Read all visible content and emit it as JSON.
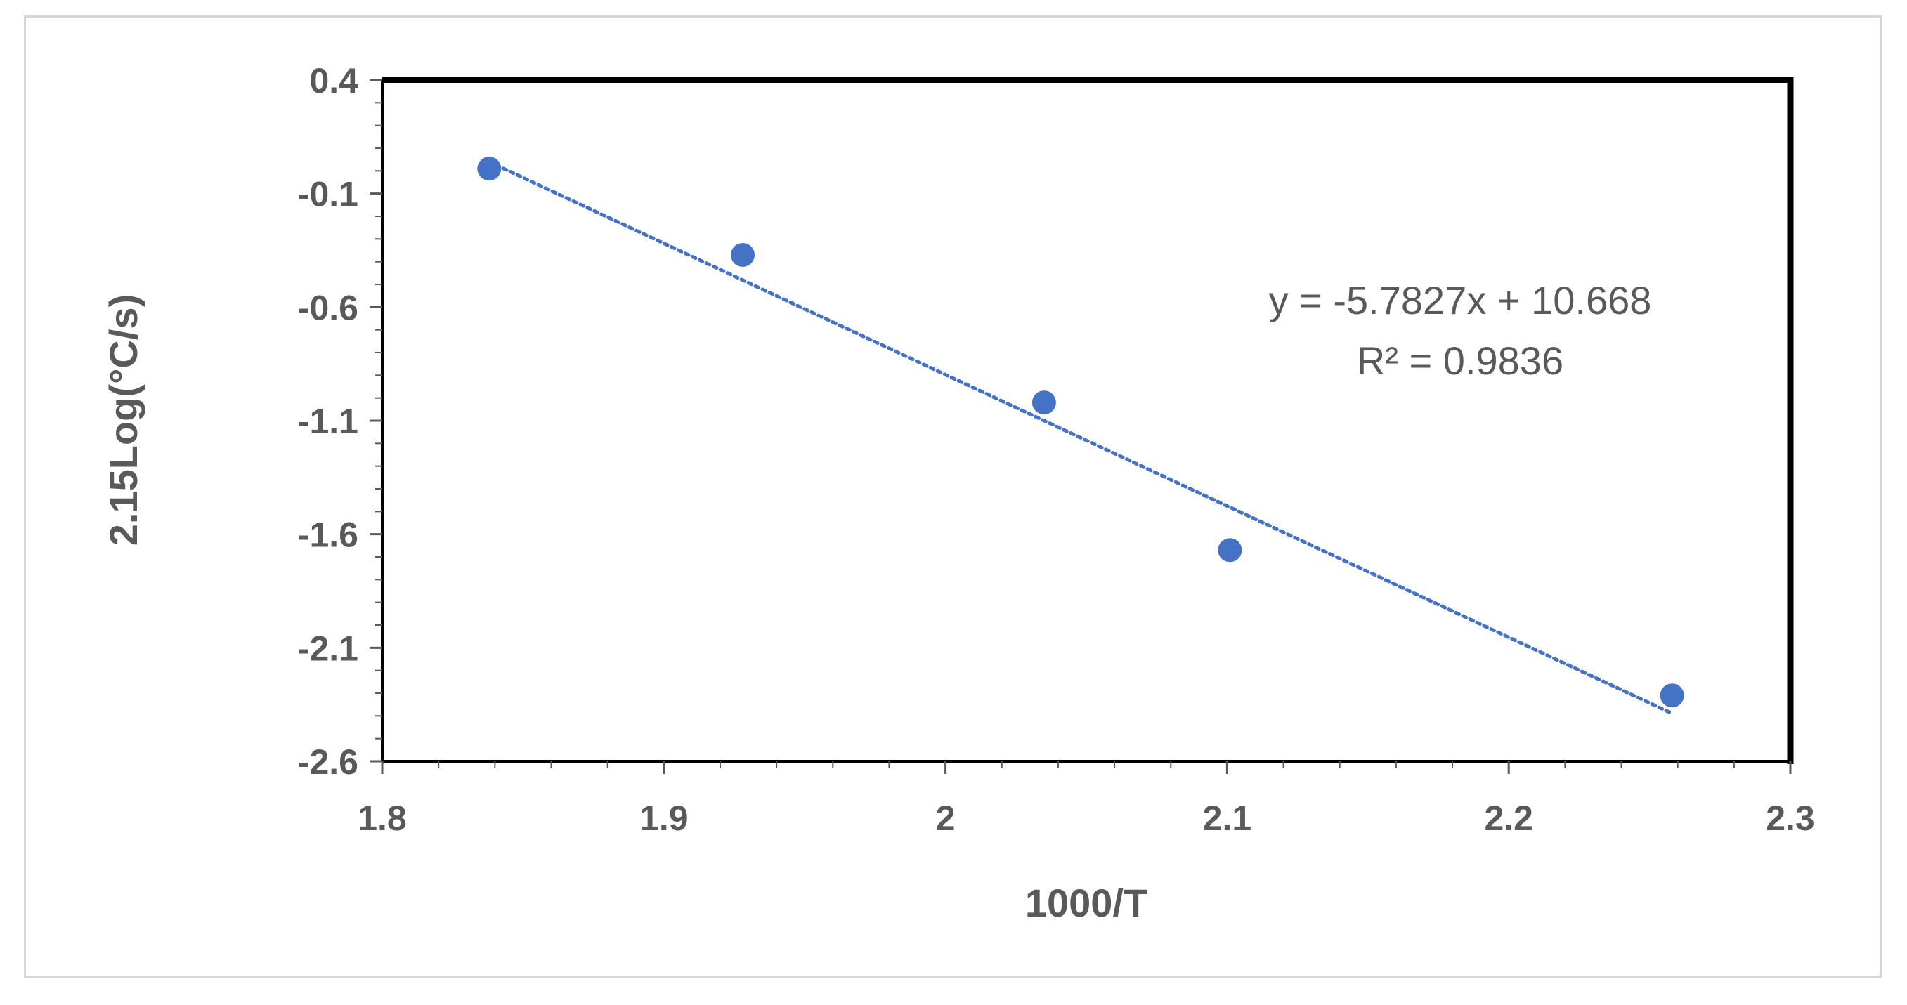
{
  "chart_data": {
    "type": "scatter",
    "xlabel": "1000/T",
    "ylabel": "2.15Log(°C/s)",
    "xlim": [
      1.8,
      2.3
    ],
    "ylim": [
      -2.6,
      0.4
    ],
    "xticks": [
      "1.8",
      "1.9",
      "2",
      "2.1",
      "2.2",
      "2.3"
    ],
    "yticks": [
      "0.4",
      "-0.1",
      "-0.6",
      "-1.1",
      "-1.6",
      "-2.1",
      "-2.6"
    ],
    "grid": false,
    "series": [
      {
        "x": [
          1.838,
          1.928,
          2.035,
          2.101,
          2.258
        ],
        "y": [
          0.01,
          -0.37,
          -1.02,
          -1.67,
          -2.31
        ],
        "color": "#4472C4",
        "marker": "circle"
      }
    ],
    "trendline": {
      "type": "linear",
      "slope": -5.7827,
      "intercept": 10.668,
      "x_range": [
        1.838,
        2.258
      ],
      "color": "#4472C4",
      "style": "dotted"
    },
    "annotations": {
      "equation": "y = -5.7827x + 10.668",
      "r_squared": "R² = 0.9836"
    },
    "colors": {
      "axis_text": "#595959",
      "plot_border": "#000000",
      "frame_border": "#d6d6d6",
      "marker": "#4472C4"
    }
  }
}
